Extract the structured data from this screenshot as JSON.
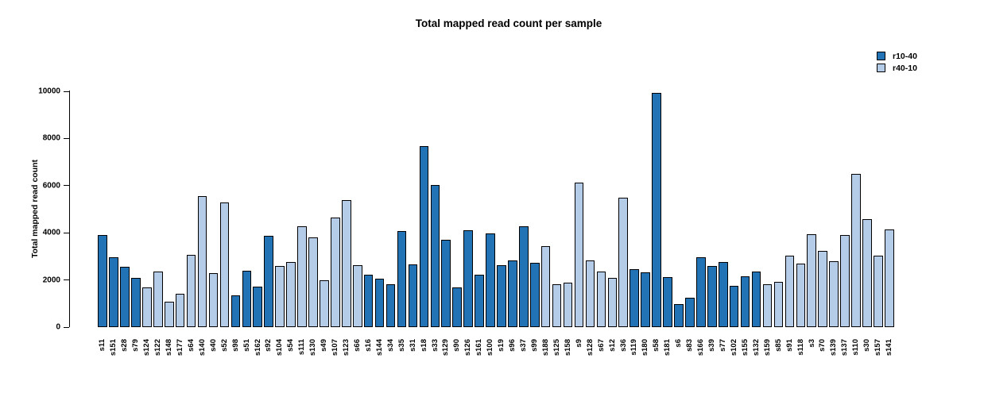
{
  "chart_data": {
    "type": "bar",
    "title": "Total mapped read count per sample",
    "ylabel": "Total mapped read count",
    "xlabel": "",
    "ylim": [
      0,
      10000
    ],
    "yticks": [
      0,
      2000,
      4000,
      6000,
      8000,
      10000
    ],
    "grid": false,
    "legend_position": "top-right",
    "bar_border_color": "#000000",
    "legend": [
      {
        "label": "r10-40",
        "color": "#2273b6"
      },
      {
        "label": "r40-10",
        "color": "#b5cce9"
      }
    ],
    "bars": [
      {
        "sample": "s11",
        "value": 3900,
        "group": "r10-40"
      },
      {
        "sample": "s151",
        "value": 2970,
        "group": "r10-40"
      },
      {
        "sample": "s28",
        "value": 2560,
        "group": "r10-40"
      },
      {
        "sample": "s79",
        "value": 2080,
        "group": "r10-40"
      },
      {
        "sample": "s124",
        "value": 1700,
        "group": "r40-10"
      },
      {
        "sample": "s122",
        "value": 2370,
        "group": "r40-10"
      },
      {
        "sample": "s148",
        "value": 1080,
        "group": "r40-10"
      },
      {
        "sample": "s177",
        "value": 1400,
        "group": "r40-10"
      },
      {
        "sample": "s64",
        "value": 3080,
        "group": "r40-10"
      },
      {
        "sample": "s140",
        "value": 5550,
        "group": "r40-10"
      },
      {
        "sample": "s40",
        "value": 2280,
        "group": "r40-10"
      },
      {
        "sample": "s52",
        "value": 5300,
        "group": "r40-10"
      },
      {
        "sample": "s98",
        "value": 1330,
        "group": "r10-40"
      },
      {
        "sample": "s51",
        "value": 2400,
        "group": "r10-40"
      },
      {
        "sample": "s162",
        "value": 1720,
        "group": "r10-40"
      },
      {
        "sample": "s92",
        "value": 3860,
        "group": "r10-40"
      },
      {
        "sample": "s104",
        "value": 2600,
        "group": "r40-10"
      },
      {
        "sample": "s54",
        "value": 2770,
        "group": "r40-10"
      },
      {
        "sample": "s111",
        "value": 4280,
        "group": "r40-10"
      },
      {
        "sample": "s130",
        "value": 3800,
        "group": "r40-10"
      },
      {
        "sample": "s49",
        "value": 1980,
        "group": "r40-10"
      },
      {
        "sample": "s107",
        "value": 4650,
        "group": "r40-10"
      },
      {
        "sample": "s123",
        "value": 5390,
        "group": "r40-10"
      },
      {
        "sample": "s66",
        "value": 2620,
        "group": "r40-10"
      },
      {
        "sample": "s16",
        "value": 2230,
        "group": "r10-40"
      },
      {
        "sample": "s144",
        "value": 2070,
        "group": "r10-40"
      },
      {
        "sample": "s34",
        "value": 1810,
        "group": "r10-40"
      },
      {
        "sample": "s35",
        "value": 4070,
        "group": "r10-40"
      },
      {
        "sample": "s31",
        "value": 2650,
        "group": "r10-40"
      },
      {
        "sample": "s18",
        "value": 7680,
        "group": "r10-40"
      },
      {
        "sample": "s33",
        "value": 6030,
        "group": "r10-40"
      },
      {
        "sample": "s129",
        "value": 3690,
        "group": "r10-40"
      },
      {
        "sample": "s90",
        "value": 1670,
        "group": "r10-40"
      },
      {
        "sample": "s126",
        "value": 4100,
        "group": "r10-40"
      },
      {
        "sample": "s161",
        "value": 2220,
        "group": "r10-40"
      },
      {
        "sample": "s100",
        "value": 3960,
        "group": "r10-40"
      },
      {
        "sample": "s19",
        "value": 2620,
        "group": "r10-40"
      },
      {
        "sample": "s96",
        "value": 2840,
        "group": "r10-40"
      },
      {
        "sample": "s37",
        "value": 4270,
        "group": "r10-40"
      },
      {
        "sample": "s99",
        "value": 2720,
        "group": "r10-40"
      },
      {
        "sample": "s188",
        "value": 3430,
        "group": "r40-10"
      },
      {
        "sample": "s125",
        "value": 1810,
        "group": "r40-10"
      },
      {
        "sample": "s158",
        "value": 1890,
        "group": "r40-10"
      },
      {
        "sample": "s9",
        "value": 6140,
        "group": "r40-10"
      },
      {
        "sample": "s128",
        "value": 2820,
        "group": "r40-10"
      },
      {
        "sample": "s67",
        "value": 2360,
        "group": "r40-10"
      },
      {
        "sample": "s12",
        "value": 2080,
        "group": "r40-10"
      },
      {
        "sample": "s36",
        "value": 5490,
        "group": "r40-10"
      },
      {
        "sample": "s119",
        "value": 2450,
        "group": "r10-40"
      },
      {
        "sample": "s180",
        "value": 2320,
        "group": "r10-40"
      },
      {
        "sample": "s58",
        "value": 9940,
        "group": "r10-40"
      },
      {
        "sample": "s181",
        "value": 2110,
        "group": "r10-40"
      },
      {
        "sample": "s6",
        "value": 960,
        "group": "r10-40"
      },
      {
        "sample": "s83",
        "value": 1250,
        "group": "r10-40"
      },
      {
        "sample": "s166",
        "value": 2950,
        "group": "r10-40"
      },
      {
        "sample": "s39",
        "value": 2590,
        "group": "r10-40"
      },
      {
        "sample": "s77",
        "value": 2750,
        "group": "r10-40"
      },
      {
        "sample": "s102",
        "value": 1750,
        "group": "r10-40"
      },
      {
        "sample": "s155",
        "value": 2140,
        "group": "r10-40"
      },
      {
        "sample": "s132",
        "value": 2370,
        "group": "r10-40"
      },
      {
        "sample": "s159",
        "value": 1810,
        "group": "r40-10"
      },
      {
        "sample": "s85",
        "value": 1910,
        "group": "r40-10"
      },
      {
        "sample": "s91",
        "value": 3020,
        "group": "r40-10"
      },
      {
        "sample": "s118",
        "value": 2690,
        "group": "r40-10"
      },
      {
        "sample": "s3",
        "value": 3930,
        "group": "r40-10"
      },
      {
        "sample": "s70",
        "value": 3230,
        "group": "r40-10"
      },
      {
        "sample": "s139",
        "value": 2800,
        "group": "r40-10"
      },
      {
        "sample": "s137",
        "value": 3910,
        "group": "r40-10"
      },
      {
        "sample": "s110",
        "value": 6490,
        "group": "r40-10"
      },
      {
        "sample": "s30",
        "value": 4580,
        "group": "r40-10"
      },
      {
        "sample": "s157",
        "value": 3020,
        "group": "r40-10"
      },
      {
        "sample": "s141",
        "value": 4130,
        "group": "r40-10"
      }
    ]
  }
}
